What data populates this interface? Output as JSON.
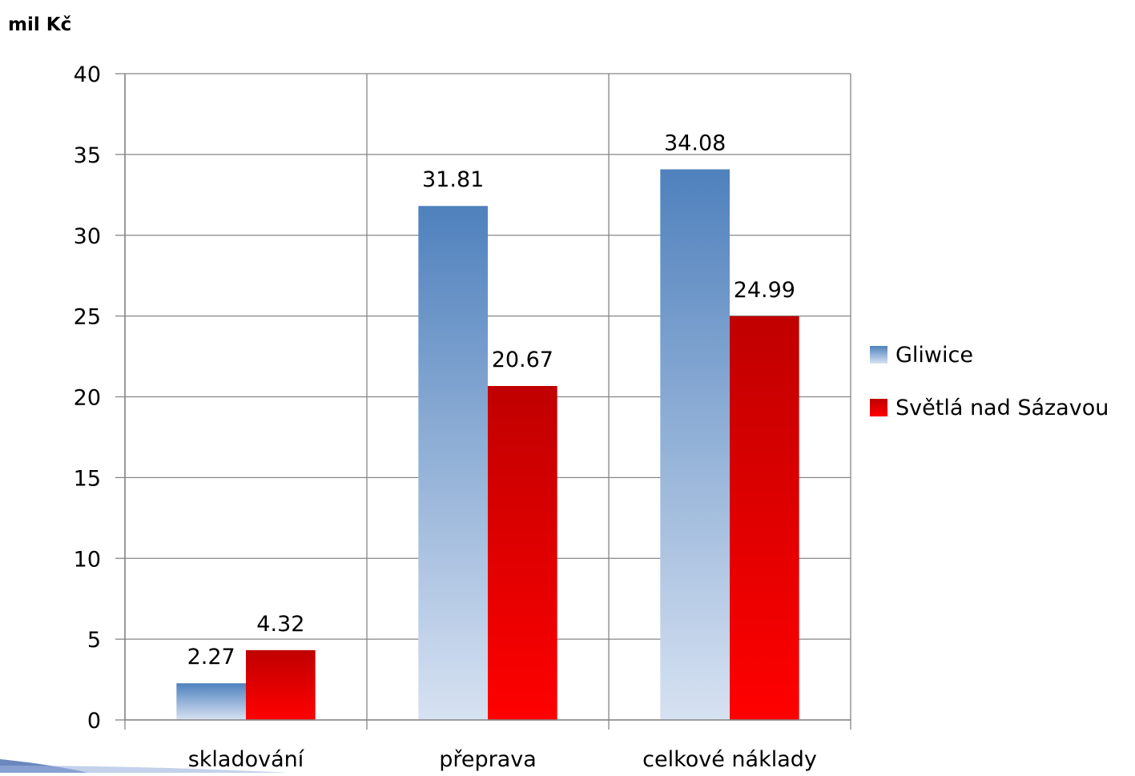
{
  "chart_data": {
    "type": "bar",
    "title": "",
    "xlabel": "",
    "ylabel": "mil Kč",
    "ylim": [
      0,
      40
    ],
    "yticks": [
      0,
      5,
      10,
      15,
      20,
      25,
      30,
      35,
      40
    ],
    "grid": true,
    "legend_position": "right",
    "categories": [
      "skladování",
      "přeprava",
      "celkové náklady"
    ],
    "series": [
      {
        "name": "Gliwice",
        "values": [
          2.27,
          31.81,
          34.08
        ],
        "labels": [
          "2.27",
          "31.81",
          "34.08"
        ],
        "color_top": "#4f81bd",
        "color_bottom": "#d7e2f2"
      },
      {
        "name": "Světlá nad Sázavou",
        "values": [
          4.32,
          20.67,
          24.99
        ],
        "labels": [
          "4.32",
          "20.67",
          "24.99"
        ],
        "color_top": "#c00000",
        "color_bottom": "#ff0000"
      }
    ]
  }
}
